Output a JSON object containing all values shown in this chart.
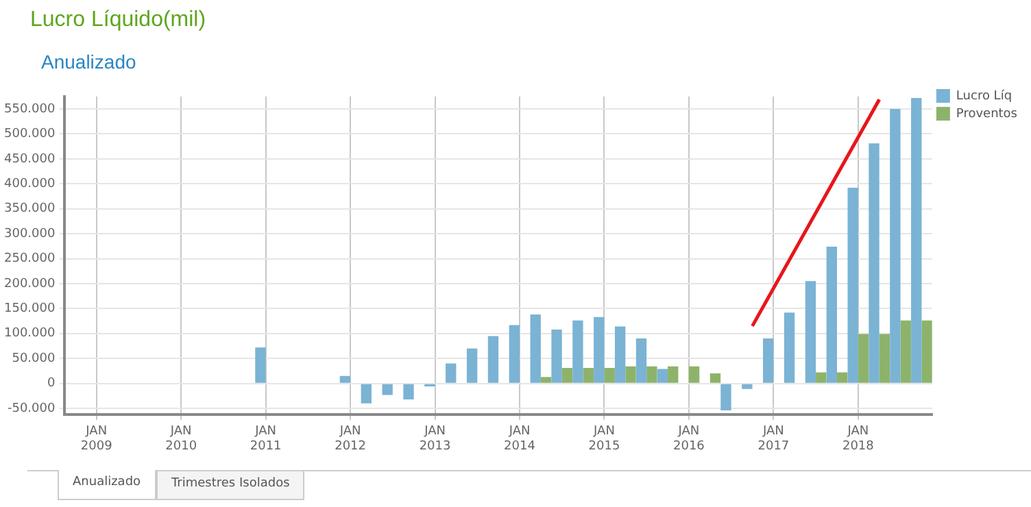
{
  "chart_data": {
    "type": "bar",
    "title": "Lucro Líquido(mil)",
    "subtitle": "Anualizado",
    "categories": [
      null,
      "JAN 2009",
      null,
      null,
      null,
      "JAN 2010",
      null,
      null,
      null,
      "JAN 2011",
      null,
      null,
      null,
      "JAN 2012",
      null,
      null,
      null,
      "JAN 2013",
      null,
      null,
      null,
      "JAN 2014",
      null,
      null,
      null,
      "JAN 2015",
      null,
      null,
      null,
      "JAN 2016",
      null,
      null,
      null,
      "JAN 2017",
      null,
      null,
      null,
      "JAN 2018",
      null,
      null,
      null
    ],
    "series": [
      {
        "name": "Lucro Líq",
        "color": "#7ab3d4",
        "values": [
          null,
          null,
          null,
          null,
          null,
          null,
          null,
          null,
          null,
          72000,
          null,
          null,
          null,
          15000,
          -40000,
          -23000,
          -32000,
          -6000,
          40000,
          70000,
          95000,
          117000,
          138000,
          108000,
          126000,
          133000,
          114000,
          90000,
          29000,
          null,
          null,
          -54000,
          -11000,
          90000,
          142000,
          205000,
          274000,
          392000,
          481000,
          550000,
          572000
        ]
      },
      {
        "name": "Proventos",
        "color": "#8db36b",
        "values": [
          null,
          null,
          null,
          null,
          null,
          null,
          null,
          null,
          null,
          0,
          null,
          null,
          null,
          0,
          0,
          0,
          0,
          0,
          0,
          0,
          0,
          0,
          13000,
          31000,
          31000,
          31000,
          34000,
          34000,
          34000,
          34000,
          20000,
          0,
          0,
          0,
          0,
          22000,
          22000,
          99000,
          99000,
          126000,
          126000
        ]
      },
      {
        "type": "line",
        "color": "#e8151b",
        "marker": "none",
        "values": [
          null,
          null,
          null,
          null,
          null,
          null,
          null,
          null,
          null,
          null,
          null,
          null,
          null,
          null,
          null,
          null,
          null,
          null,
          null,
          null,
          null,
          null,
          null,
          null,
          null,
          null,
          null,
          null,
          null,
          null,
          null,
          null,
          115000,
          null,
          null,
          null,
          null,
          null,
          569000,
          null,
          null
        ]
      }
    ],
    "ylim": [
      -62000,
      575000
    ],
    "yticks": [
      {
        "value": -50000,
        "label": "-50.000"
      },
      0,
      {
        "value": 50000,
        "label": "50.000"
      },
      {
        "value": 100000,
        "label": "100.000"
      },
      {
        "value": 150000,
        "label": "150.000"
      },
      {
        "value": 200000,
        "label": "200.000"
      },
      {
        "value": 250000,
        "label": "250.000"
      },
      {
        "value": 300000,
        "label": "300.000"
      },
      {
        "value": 350000,
        "label": "350.000"
      },
      {
        "value": 400000,
        "label": "400.000"
      },
      {
        "value": 450000,
        "label": "450.000"
      },
      {
        "value": 500000,
        "label": "500.000"
      },
      {
        "value": 550000,
        "label": "550.000"
      }
    ],
    "grid": true,
    "legend": "top right",
    "annotations": [
      "Anualizado",
      "Trimestres Isolados"
    ]
  }
}
